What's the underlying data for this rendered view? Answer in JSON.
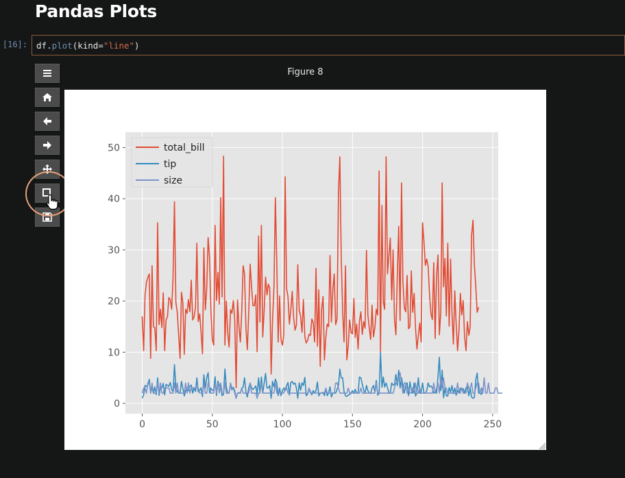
{
  "notebook": {
    "heading": "Pandas Plots",
    "cell_prompt": "[16]:",
    "code": {
      "obj": "df",
      "dot": ".",
      "method": "plot",
      "open": "(",
      "kw": "kind=",
      "str": "\"line\"",
      "close": ")"
    }
  },
  "toolbar": {
    "buttons": [
      {
        "icon": "menu-icon"
      },
      {
        "icon": "home-icon"
      },
      {
        "icon": "back-arrow-icon"
      },
      {
        "icon": "forward-arrow-icon"
      },
      {
        "icon": "pan-icon"
      },
      {
        "icon": "zoom-rect-icon"
      },
      {
        "icon": "save-icon"
      }
    ]
  },
  "figure": {
    "title": "Figure 8"
  },
  "colors": {
    "total_bill": "#e24a33",
    "tip": "#348abd",
    "size": "#7a93c8",
    "accent": "#e7a07a"
  },
  "chart_data": {
    "type": "line",
    "xlim": [
      -12,
      254
    ],
    "ylim": [
      -2,
      53
    ],
    "xticks": [
      0,
      50,
      100,
      150,
      200,
      250
    ],
    "yticks": [
      0,
      10,
      20,
      30,
      40,
      50
    ],
    "grid": true,
    "legend": "upper left",
    "series": [
      {
        "name": "total_bill",
        "y": [
          17.0,
          10.3,
          21.0,
          23.7,
          24.6,
          25.3,
          8.8,
          26.9,
          15.0,
          14.8,
          10.3,
          35.3,
          15.4,
          18.4,
          14.8,
          21.6,
          10.3,
          16.3,
          16.97,
          20.7,
          20.3,
          18.4,
          24.5,
          39.4,
          19.8,
          17.8,
          13.4,
          8.8,
          21.7,
          19.7,
          9.6,
          18.4,
          17.6,
          20.3,
          17.9,
          24.1,
          16.3,
          16.9,
          18.7,
          31.3,
          16.0,
          17.5,
          13.9,
          9.7,
          30.4,
          18.3,
          22.2,
          32.4,
          28.6,
          18.0,
          12.5,
          11.4,
          34.8,
          20.1,
          25.6,
          19.4,
          40.2,
          20.8,
          48.3,
          11.4,
          20.0,
          13.8,
          11.0,
          18.3,
          17.6,
          20.1,
          16.45,
          3.07,
          20.2,
          15.0,
          12.0,
          17.8,
          26.9,
          25.3,
          14.7,
          10.5,
          17.9,
          27.2,
          22.8,
          19.1,
          19.1,
          21.2,
          10.1,
          32.7,
          15.9,
          34.8,
          13.0,
          18.3,
          24.7,
          21.2,
          23.3,
          22.5,
          5.75,
          16.3,
          22.75,
          40.2,
          27.3,
          12.0,
          21.0,
          12.5,
          11.4,
          13.4,
          44.3,
          22.4,
          20.9,
          15.5,
          18.3,
          21.9,
          16.9,
          14.3,
          15.3,
          27.1,
          18.2,
          17.1,
          13.9,
          20.3,
          13.1,
          11.8,
          12.3,
          13.5,
          13.3,
          16.5,
          15.8,
          12.0,
          26.4,
          11.2,
          22.2,
          7.25,
          18.4,
          20.9,
          8.5,
          13.0,
          15.5,
          15.0,
          28.9,
          15.9,
          22.3,
          25.3,
          15.4,
          16.5,
          41.2,
          48.2,
          28.6,
          18.0,
          12.0,
          26.9,
          8.5,
          11.4,
          16.3,
          13.8,
          13.6,
          20.5,
          12.9,
          15.5,
          10.6,
          16.0,
          17.9,
          13.5,
          16.0,
          14.7,
          29.9,
          17.3,
          14.8,
          12.5,
          19.2,
          13.0,
          14.8,
          18.4,
          17.3,
          45.4,
          9.9,
          38.7,
          19.8,
          18.4,
          48.2,
          25.3,
          29.0,
          32.3,
          20.2,
          30.0,
          16.3,
          13.4,
          25.3,
          34.6,
          16.2,
          43.1,
          23.8,
          18.7,
          17.9,
          25.0,
          14.6,
          15.0,
          25.9,
          17.8,
          21.5,
          14.8,
          10.6,
          13.3,
          15.7,
          12.0,
          35.3,
          31.7,
          27.0,
          28.2,
          26.8,
          21.3,
          17.5,
          16.4,
          27.5,
          12.7,
          24.8,
          29.0,
          13.4,
          17.9,
          43.1,
          22.8,
          28.3,
          17.1,
          31.3,
          15.1,
          28.2,
          17.8,
          11.6,
          22.0,
          15.6,
          10.3,
          14.2,
          21.5,
          17.3,
          20.1,
          13.0,
          10.3,
          16.0,
          13.3,
          15.0,
          32.8,
          35.8,
          27.2,
          22.7,
          17.8,
          18.8
        ]
      },
      {
        "name": "tip",
        "y": [
          1.01,
          1.66,
          3.5,
          3.31,
          3.61,
          4.71,
          2.0,
          3.12,
          1.96,
          3.23,
          1.71,
          5.0,
          1.57,
          3.0,
          3.02,
          3.92,
          1.67,
          3.71,
          3.5,
          3.35,
          4.08,
          2.75,
          2.23,
          7.58,
          3.18,
          2.34,
          2.0,
          2.0,
          4.3,
          3.0,
          1.45,
          2.5,
          3.0,
          2.45,
          3.27,
          3.6,
          2.0,
          3.07,
          2.31,
          5.0,
          2.24,
          2.54,
          3.06,
          1.32,
          5.6,
          3.0,
          5.0,
          6.0,
          2.05,
          3.0,
          2.5,
          2.6,
          5.2,
          1.56,
          4.34,
          3.51,
          3.0,
          1.5,
          1.76,
          6.73,
          3.21,
          2.0,
          1.98,
          3.76,
          2.64,
          3.15,
          2.47,
          1.0,
          2.01,
          2.09,
          1.97,
          3.0,
          3.14,
          5.0,
          2.2,
          1.25,
          3.08,
          4.0,
          3.0,
          2.71,
          3.0,
          3.4,
          1.83,
          5.0,
          2.03,
          5.17,
          2.0,
          4.0,
          5.85,
          3.0,
          3.0,
          3.5,
          1.0,
          4.3,
          3.25,
          4.73,
          4.0,
          1.5,
          3.0,
          1.5,
          2.5,
          3.0,
          2.5,
          3.48,
          4.08,
          1.64,
          4.06,
          4.29,
          3.76,
          4.0,
          3.0,
          1.0,
          4.0,
          2.55,
          4.0,
          3.5,
          5.07,
          1.5,
          1.8,
          2.92,
          2.31,
          1.68,
          2.5,
          2.0,
          2.52,
          4.2,
          1.48,
          2.0,
          2.0,
          2.18,
          1.5,
          2.83,
          1.5,
          2.0,
          3.25,
          1.25,
          2.0,
          2.0,
          2.0,
          2.75,
          3.5,
          6.7,
          5.0,
          5.0,
          2.3,
          1.5,
          1.36,
          1.63,
          1.73,
          2.0,
          2.5,
          2.0,
          2.74,
          2.0,
          2.0,
          5.14,
          5.0,
          3.75,
          2.61,
          2.0,
          3.5,
          2.5,
          2.0,
          2.0,
          3.0,
          3.48,
          2.24,
          4.5,
          1.61,
          2.0,
          10.0,
          3.16,
          5.15,
          3.18,
          4.0,
          3.11,
          2.0,
          2.0,
          4.0,
          3.55,
          3.68,
          5.65,
          3.5,
          6.5,
          3.0,
          5.0,
          3.5,
          2.0,
          3.5,
          4.0,
          1.5,
          4.19,
          2.56,
          2.02,
          4.0,
          1.44,
          2.0,
          5.0,
          2.0,
          2.0,
          4.0,
          2.01,
          2.0,
          2.5,
          4.0,
          3.23,
          3.41,
          3.0,
          2.03,
          2.23,
          2.0,
          5.16,
          9.0,
          2.5,
          6.5,
          1.1,
          3.0,
          1.5,
          1.44,
          3.09,
          2.2,
          3.48,
          1.92,
          3.0,
          1.58,
          2.5,
          2.0,
          3.0,
          2.72,
          2.88,
          2.0,
          3.0,
          3.39,
          1.47,
          3.0,
          1.25,
          1.0,
          1.17,
          4.67,
          5.92,
          2.0,
          2.0,
          1.75,
          3.0
        ]
      },
      {
        "name": "size",
        "y": [
          2,
          3,
          3,
          2,
          4,
          4,
          2,
          4,
          2,
          2,
          2,
          4,
          2,
          4,
          2,
          2,
          3,
          3,
          3,
          3,
          2,
          2,
          2,
          4,
          2,
          4,
          2,
          2,
          2,
          2,
          2,
          4,
          2,
          4,
          2,
          3,
          3,
          3,
          3,
          3,
          3,
          2,
          2,
          2,
          4,
          2,
          2,
          4,
          3,
          2,
          2,
          2,
          4,
          2,
          4,
          2,
          4,
          2,
          2,
          4,
          2,
          2,
          2,
          4,
          3,
          3,
          2,
          1,
          2,
          2,
          2,
          3,
          2,
          2,
          2,
          2,
          2,
          4,
          2,
          2,
          2,
          2,
          1,
          2,
          2,
          4,
          2,
          2,
          2,
          2,
          2,
          2,
          2,
          2,
          2,
          4,
          2,
          2,
          2,
          2,
          2,
          2,
          3,
          3,
          2,
          2,
          2,
          2,
          2,
          2,
          2,
          2,
          2,
          2,
          2,
          2,
          2,
          2,
          2,
          3,
          2,
          2,
          2,
          2,
          2,
          2,
          2,
          2,
          2,
          2,
          2,
          3,
          2,
          2,
          2,
          2,
          2,
          2,
          4,
          4,
          3,
          2,
          2,
          2,
          2,
          2,
          2,
          3,
          2,
          2,
          2,
          2,
          2,
          2,
          2,
          2,
          3,
          2,
          2,
          2,
          2,
          2,
          2,
          2,
          2,
          2,
          2,
          4,
          2,
          2,
          2,
          2,
          2,
          2,
          2,
          2,
          2,
          2,
          2,
          2,
          3,
          4,
          4,
          5,
          6,
          4,
          2,
          4,
          4,
          2,
          3,
          2,
          2,
          3,
          2,
          4,
          2,
          2,
          3,
          2,
          2,
          2,
          2,
          2,
          2,
          2,
          2,
          2,
          4,
          2,
          3,
          4,
          2,
          5,
          3,
          5,
          3,
          3,
          2,
          2,
          2,
          2,
          2,
          2,
          2,
          4,
          2,
          2,
          3,
          2,
          2,
          2,
          4,
          3,
          3,
          4,
          2,
          2,
          3,
          4,
          4,
          2,
          3,
          2,
          5,
          2,
          2,
          4,
          2,
          2,
          2,
          2,
          3,
          3,
          2,
          2,
          2,
          2
        ]
      }
    ]
  }
}
